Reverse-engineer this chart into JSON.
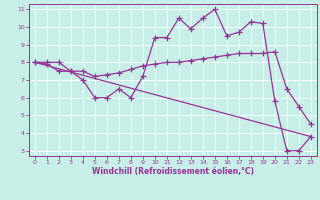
{
  "title": "",
  "xlabel": "Windchill (Refroidissement éolien,°C)",
  "bg_color": "#c8eee8",
  "grid_color": "#ffffff",
  "line_color": "#993399",
  "xlim": [
    -0.5,
    23.5
  ],
  "ylim": [
    2.7,
    11.3
  ],
  "xticks": [
    0,
    1,
    2,
    3,
    4,
    5,
    6,
    7,
    8,
    9,
    10,
    11,
    12,
    13,
    14,
    15,
    16,
    17,
    18,
    19,
    20,
    21,
    22,
    23
  ],
  "yticks": [
    3,
    4,
    5,
    6,
    7,
    8,
    9,
    10,
    11
  ],
  "series1_x": [
    0,
    1,
    2,
    3,
    4,
    5,
    6,
    7,
    8,
    9,
    10,
    11,
    12,
    13,
    14,
    15,
    16,
    17,
    18,
    19,
    20,
    21,
    22,
    23
  ],
  "series1_y": [
    8.0,
    8.0,
    8.0,
    7.5,
    7.0,
    6.0,
    6.0,
    6.5,
    6.0,
    7.2,
    9.4,
    9.4,
    10.5,
    9.9,
    10.5,
    11.0,
    9.5,
    9.7,
    10.3,
    10.2,
    5.8,
    3.0,
    3.0,
    3.8
  ],
  "series2_x": [
    0,
    1,
    2,
    3,
    4,
    5,
    6,
    7,
    8,
    9,
    10,
    11,
    12,
    13,
    14,
    15,
    16,
    17,
    18,
    19,
    20,
    21,
    22,
    23
  ],
  "series2_y": [
    8.0,
    7.9,
    7.5,
    7.5,
    7.5,
    7.2,
    7.3,
    7.4,
    7.6,
    7.8,
    7.9,
    8.0,
    8.0,
    8.1,
    8.2,
    8.3,
    8.4,
    8.5,
    8.5,
    8.5,
    8.6,
    6.5,
    5.5,
    4.5
  ],
  "series3_x": [
    0,
    23
  ],
  "series3_y": [
    8.0,
    3.8
  ],
  "marker": "+",
  "markersize": 4,
  "linewidth": 0.9
}
